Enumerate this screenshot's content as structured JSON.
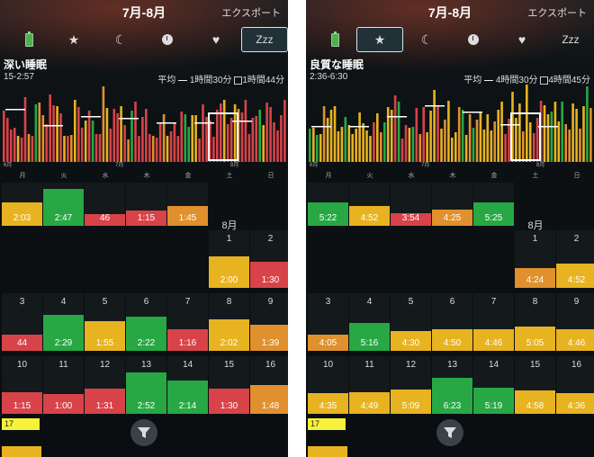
{
  "colors": {
    "red": "#d8434a",
    "green": "#27a844",
    "orange": "#e0902c",
    "yellow": "#e8b320",
    "lightgreen": "#5fb83a",
    "grey": "#bbbbbb"
  },
  "panels": [
    {
      "title": "7月-8月",
      "export": "エクスポート",
      "tabs": [
        {
          "name": "battery-icon",
          "label": ""
        },
        {
          "name": "star-icon",
          "label": "★"
        },
        {
          "name": "moon-icon",
          "label": "☾"
        },
        {
          "name": "clock-icon",
          "label": ""
        },
        {
          "name": "heart-icon",
          "label": "♥"
        },
        {
          "name": "zzz-tab",
          "label": "Zzz"
        }
      ],
      "active_tab": 5,
      "section_title": "深い睡眠",
      "range": "15-2:57",
      "avg_label": "平均",
      "avg_value": "1時間30分",
      "avg2_value": "1時間44分",
      "month_labels": [
        "6月",
        "7月",
        "8月"
      ],
      "weekdays": [
        "月",
        "火",
        "水",
        "木",
        "金",
        "土",
        "日"
      ],
      "aug_label": "8月",
      "today": "17",
      "weeks": [
        [
          {
            "d": "",
            "v": "2:03",
            "c": "yellow",
            "h": 0.55
          },
          {
            "d": "",
            "v": "2:47",
            "c": "green",
            "h": 0.85
          },
          {
            "d": "",
            "v": "46",
            "c": "red",
            "h": 0.28
          },
          {
            "d": "",
            "v": "1:15",
            "c": "red",
            "h": 0.35
          },
          {
            "d": "",
            "v": "1:45",
            "c": "orange",
            "h": 0.45
          },
          null,
          null
        ],
        [
          null,
          null,
          null,
          null,
          null,
          {
            "d": "1",
            "v": "2:00",
            "c": "yellow",
            "h": 0.55
          },
          {
            "d": "2",
            "v": "1:30",
            "c": "red",
            "h": 0.45
          }
        ],
        [
          {
            "d": "3",
            "v": "44",
            "c": "red",
            "h": 0.28
          },
          {
            "d": "4",
            "v": "2:29",
            "c": "green",
            "h": 0.62
          },
          {
            "d": "5",
            "v": "1:55",
            "c": "yellow",
            "h": 0.52
          },
          {
            "d": "6",
            "v": "2:22",
            "c": "green",
            "h": 0.6
          },
          {
            "d": "7",
            "v": "1:16",
            "c": "red",
            "h": 0.38
          },
          {
            "d": "8",
            "v": "2:02",
            "c": "yellow",
            "h": 0.55
          },
          {
            "d": "9",
            "v": "1:39",
            "c": "orange",
            "h": 0.45
          }
        ],
        [
          {
            "d": "10",
            "v": "1:15",
            "c": "red",
            "h": 0.38
          },
          {
            "d": "11",
            "v": "1:00",
            "c": "red",
            "h": 0.34
          },
          {
            "d": "12",
            "v": "1:31",
            "c": "red",
            "h": 0.44
          },
          {
            "d": "13",
            "v": "2:52",
            "c": "green",
            "h": 0.72
          },
          {
            "d": "14",
            "v": "2:14",
            "c": "green",
            "h": 0.58
          },
          {
            "d": "15",
            "v": "1:30",
            "c": "red",
            "h": 0.44
          },
          {
            "d": "16",
            "v": "1:48",
            "c": "orange",
            "h": 0.5
          }
        ]
      ],
      "ref_lines": [
        0.6,
        0.5
      ],
      "avg_line_value": 0.62
    },
    {
      "title": "7月-8月",
      "export": "エクスポート",
      "tabs": [
        {
          "name": "battery-icon",
          "label": ""
        },
        {
          "name": "star-icon",
          "label": "★"
        },
        {
          "name": "moon-icon",
          "label": "☾"
        },
        {
          "name": "clock-icon",
          "label": ""
        },
        {
          "name": "heart-icon",
          "label": "♥"
        },
        {
          "name": "zzz-tab",
          "label": "Zzz"
        }
      ],
      "active_tab": 1,
      "section_title": "良質な睡眠",
      "range": "2:36-6:30",
      "avg_label": "平均",
      "avg_value": "4時間30分",
      "avg2_value": "4時間45分",
      "month_labels": [
        "6月",
        "7月",
        "8月"
      ],
      "weekdays": [
        "月",
        "火",
        "水",
        "木",
        "金",
        "土",
        "日"
      ],
      "aug_label": "8月",
      "today": "17",
      "weeks": [
        [
          {
            "d": "",
            "v": "5:22",
            "c": "green",
            "h": 0.55
          },
          {
            "d": "",
            "v": "4:52",
            "c": "yellow",
            "h": 0.45
          },
          {
            "d": "",
            "v": "3:54",
            "c": "red",
            "h": 0.3
          },
          {
            "d": "",
            "v": "4:25",
            "c": "orange",
            "h": 0.38
          },
          {
            "d": "",
            "v": "5:25",
            "c": "green",
            "h": 0.55
          },
          null,
          null
        ],
        [
          null,
          null,
          null,
          null,
          null,
          {
            "d": "1",
            "v": "4:24",
            "c": "orange",
            "h": 0.35
          },
          {
            "d": "2",
            "v": "4:52",
            "c": "yellow",
            "h": 0.42
          }
        ],
        [
          {
            "d": "3",
            "v": "4:05",
            "c": "orange",
            "h": 0.28
          },
          {
            "d": "4",
            "v": "5:16",
            "c": "green",
            "h": 0.48
          },
          {
            "d": "5",
            "v": "4:30",
            "c": "yellow",
            "h": 0.34
          },
          {
            "d": "6",
            "v": "4:50",
            "c": "yellow",
            "h": 0.38
          },
          {
            "d": "7",
            "v": "4:46",
            "c": "yellow",
            "h": 0.38
          },
          {
            "d": "8",
            "v": "5:05",
            "c": "yellow",
            "h": 0.42
          },
          {
            "d": "9",
            "v": "4:46",
            "c": "yellow",
            "h": 0.38
          }
        ],
        [
          {
            "d": "10",
            "v": "4:35",
            "c": "yellow",
            "h": 0.36
          },
          {
            "d": "11",
            "v": "4:49",
            "c": "yellow",
            "h": 0.38
          },
          {
            "d": "12",
            "v": "5:09",
            "c": "yellow",
            "h": 0.42
          },
          {
            "d": "13",
            "v": "6:23",
            "c": "green",
            "h": 0.62
          },
          {
            "d": "14",
            "v": "5:19",
            "c": "green",
            "h": 0.46
          },
          {
            "d": "15",
            "v": "4:58",
            "c": "yellow",
            "h": 0.4
          },
          {
            "d": "16",
            "v": "4:36",
            "c": "yellow",
            "h": 0.36
          }
        ]
      ],
      "ref_lines": [
        0.55,
        0.5
      ],
      "avg_line_value": 0.6
    }
  ]
}
